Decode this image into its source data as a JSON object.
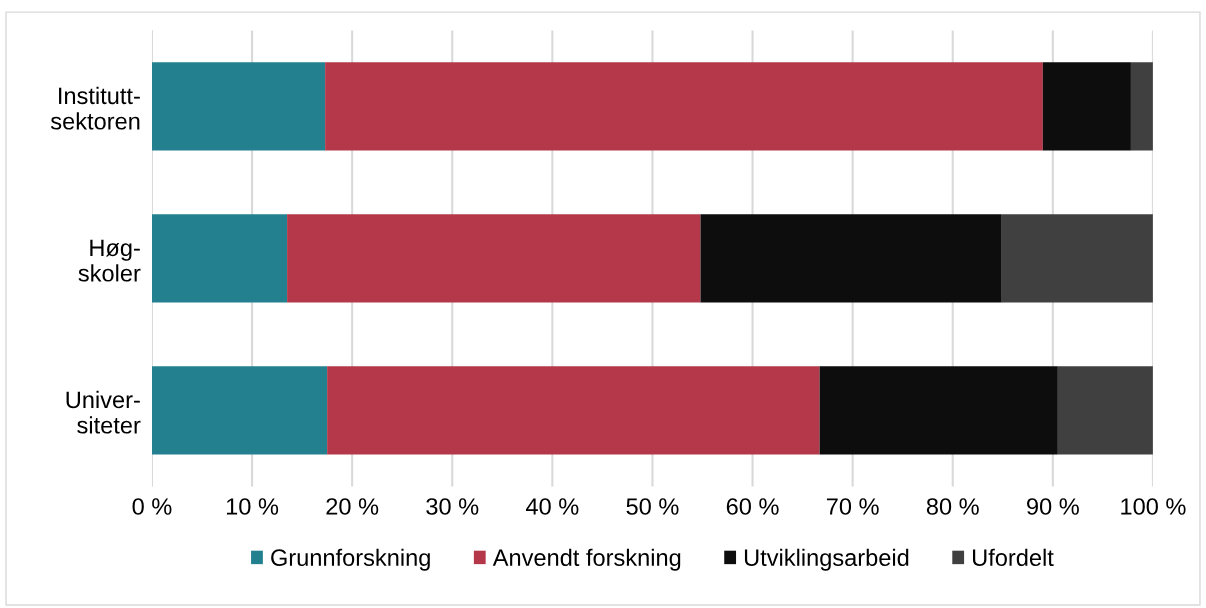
{
  "chart_data": {
    "type": "bar",
    "orientation": "horizontal",
    "stacked": true,
    "categories": [
      "Institutt-\nsektoren",
      "Høg-\nskoler",
      "Univer-\nsiteter"
    ],
    "series": [
      {
        "name": "Grunnforskning",
        "color": "#23808f",
        "values": [
          17.3,
          13.5,
          17.5
        ]
      },
      {
        "name": "Anvendt forskning",
        "color": "#b4384a",
        "values": [
          71.7,
          41.3,
          49.2
        ]
      },
      {
        "name": "Utviklingsarbeid",
        "color": "#0d0d0d",
        "values": [
          8.8,
          30.1,
          23.8
        ]
      },
      {
        "name": "Ufordelt",
        "color": "#404040",
        "values": [
          2.2,
          15.1,
          9.5
        ]
      }
    ],
    "xlim": [
      0,
      100
    ],
    "xticks": [
      {
        "value": 0,
        "label": "0 %"
      },
      {
        "value": 10,
        "label": "10 %"
      },
      {
        "value": 20,
        "label": "20 %"
      },
      {
        "value": 30,
        "label": "30 %"
      },
      {
        "value": 40,
        "label": "40 %"
      },
      {
        "value": 50,
        "label": "50 %"
      },
      {
        "value": 60,
        "label": "60 %"
      },
      {
        "value": 70,
        "label": "70 %"
      },
      {
        "value": 80,
        "label": "80 %"
      },
      {
        "value": 90,
        "label": "90 %"
      },
      {
        "value": 100,
        "label": "100 %"
      }
    ],
    "grid": "x",
    "legend": "bottom"
  }
}
